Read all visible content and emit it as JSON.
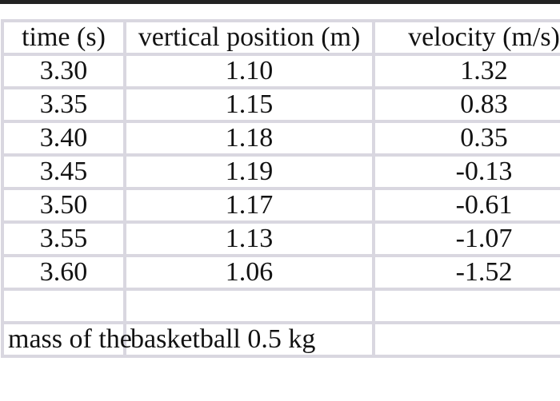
{
  "page": {
    "background_color": "#ffffff",
    "top_bar_color": "#232323"
  },
  "colors": {
    "table_border": "#d9d7e0",
    "text": "#121212"
  },
  "table": {
    "headers": [
      "time (s)",
      "vertical position (m)",
      "velocity (m/s)"
    ],
    "rows": [
      [
        "3.30",
        "1.10",
        "1.32"
      ],
      [
        "3.35",
        "1.15",
        "0.83"
      ],
      [
        "3.40",
        "1.18",
        "0.35"
      ],
      [
        "3.45",
        "1.19",
        "-0.13"
      ],
      [
        "3.50",
        "1.17",
        "-0.61"
      ],
      [
        "3.55",
        "1.13",
        "-1.07"
      ],
      [
        "3.60",
        "1.06",
        "-1.52"
      ]
    ],
    "empty_row": [
      "",
      "",
      ""
    ],
    "note_row": [
      "mass of the",
      "basketball 0.5 kg",
      ""
    ]
  },
  "chart_data": {
    "type": "table",
    "title": "",
    "columns": [
      "time (s)",
      "vertical position (m)",
      "velocity (m/s)"
    ],
    "rows": [
      [
        3.3,
        1.1,
        1.32
      ],
      [
        3.35,
        1.15,
        0.83
      ],
      [
        3.4,
        1.18,
        0.35
      ],
      [
        3.45,
        1.19,
        -0.13
      ],
      [
        3.5,
        1.17,
        -0.61
      ],
      [
        3.55,
        1.13,
        -1.07
      ],
      [
        3.6,
        1.06,
        -1.52
      ]
    ],
    "note": "mass of the basketball 0.5 kg"
  }
}
